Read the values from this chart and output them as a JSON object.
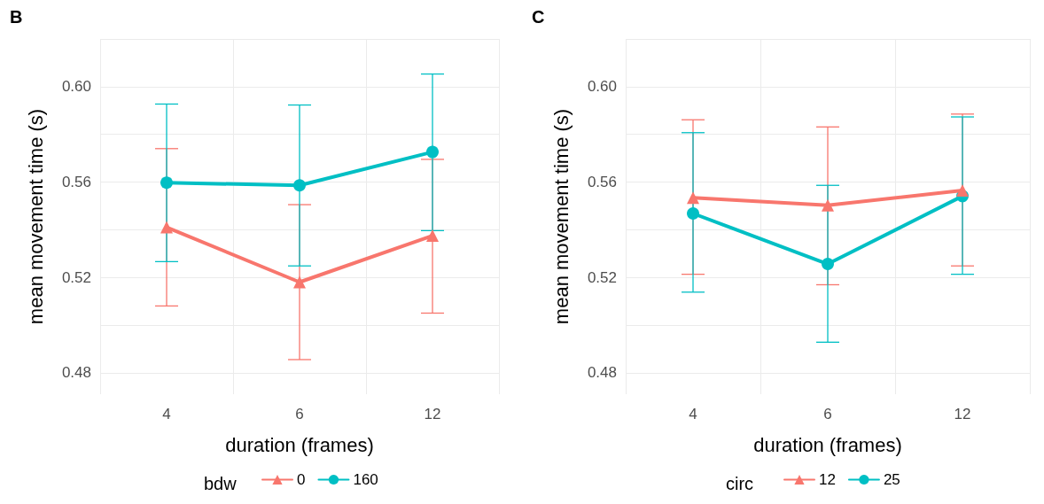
{
  "chart_data": [
    {
      "type": "line",
      "title": "B",
      "xlabel": "duration (frames)",
      "ylabel": "mean movement time (s)",
      "legend_title": "bdw",
      "legend": "bottom",
      "grid": true,
      "categories": [
        "4",
        "6",
        "12"
      ],
      "ylim": [
        0.471,
        0.62
      ],
      "yticks": [
        0.48,
        {
          "value": 0.5,
          "label": null
        },
        0.52,
        {
          "value": 0.54,
          "label": null
        },
        0.56,
        {
          "value": 0.58,
          "label": null
        },
        {
          "value": 0.6,
          "label": "0.60"
        },
        {
          "value": 0.62,
          "label": null
        }
      ],
      "series": [
        {
          "name": "0",
          "color": "#f8766d",
          "marker": "triangle",
          "values": [
            0.541,
            0.518,
            0.5375
          ],
          "errors": [
            [
              0.508,
              0.574
            ],
            [
              0.4855,
              0.5505
            ],
            [
              0.505,
              0.5695
            ]
          ]
        },
        {
          "name": "160",
          "color": "#00bfc4",
          "marker": "circle",
          "values": [
            0.5597,
            0.5586,
            0.5726
          ],
          "errors": [
            [
              0.5266,
              0.5927
            ],
            [
              0.5248,
              0.5923
            ],
            [
              0.5396,
              0.6053
            ]
          ]
        }
      ]
    },
    {
      "type": "line",
      "title": "C",
      "xlabel": "duration (frames)",
      "ylabel": "mean movement time (s)",
      "legend_title": "circ",
      "legend": "bottom",
      "grid": true,
      "categories": [
        "4",
        "6",
        "12"
      ],
      "ylim": [
        0.471,
        0.62
      ],
      "yticks": [
        0.48,
        {
          "value": 0.5,
          "label": null
        },
        0.52,
        {
          "value": 0.54,
          "label": null
        },
        0.56,
        {
          "value": 0.58,
          "label": null
        },
        {
          "value": 0.6,
          "label": "0.60"
        },
        {
          "value": 0.62,
          "label": null
        }
      ],
      "series": [
        {
          "name": "12",
          "color": "#f8766d",
          "marker": "triangle",
          "values": [
            0.5534,
            0.5502,
            0.5565
          ],
          "errors": [
            [
              0.5213,
              0.5861
            ],
            [
              0.5169,
              0.5831
            ],
            [
              0.5248,
              0.5885
            ]
          ]
        },
        {
          "name": "25",
          "color": "#00bfc4",
          "marker": "circle",
          "values": [
            0.5468,
            0.5256,
            0.5541
          ],
          "errors": [
            [
              0.5138,
              0.5807
            ],
            [
              0.4928,
              0.5586
            ],
            [
              0.5213,
              0.5873
            ]
          ]
        }
      ]
    }
  ]
}
